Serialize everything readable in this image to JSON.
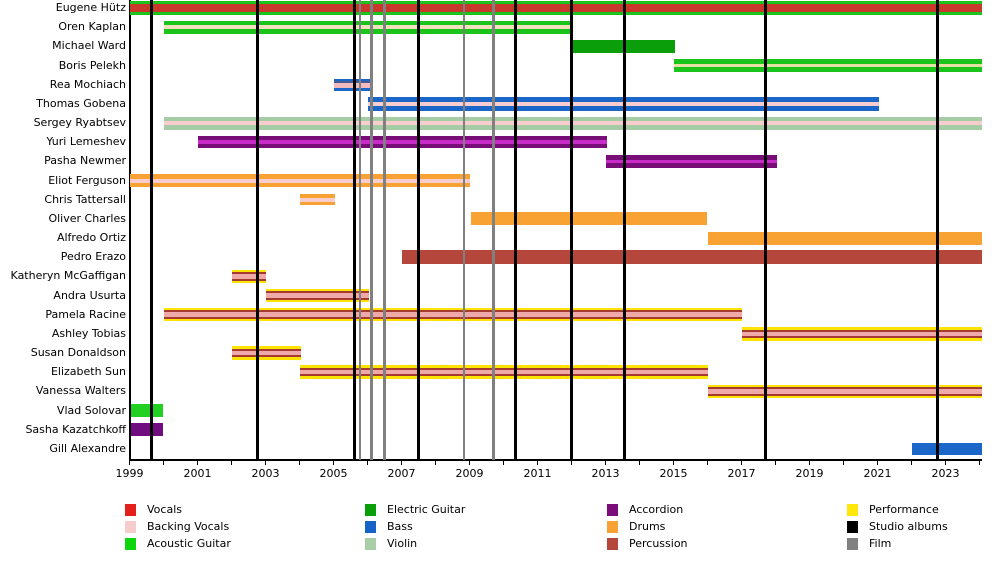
{
  "palette": {
    "vocals": "#C9382C",
    "acoustic": "#1BC41B",
    "acousticBright": "#22D022",
    "electric": "#0B9E0B",
    "cream": "#F2DFBE",
    "khaki": "#E6E0A3",
    "bass": "#1A67C9",
    "navy": "#4A5A94",
    "pinkRea": "#F2B9BE",
    "backing": "#F7CDCD",
    "pinkPerf": "#F0A9A9",
    "violin": "#A5CCA5",
    "accordion": "#780D78",
    "magenta": "#C92BC9",
    "sashaPurple": "#6E0C80",
    "drums": "#F7A233",
    "percussion": "#B5463C",
    "percStripe": "#A63A30",
    "performance": "#FFE400",
    "album": "#000000",
    "film": "#808080"
  },
  "chart_data": {
    "type": "bar",
    "subtype": "timeline-gantt-band-members",
    "x_axis": {
      "start_year": 1999,
      "end_year": 2024,
      "tick_labels": [
        1999,
        2001,
        2003,
        2005,
        2007,
        2009,
        2011,
        2013,
        2015,
        2017,
        2019,
        2021,
        2023
      ],
      "minor_tick_every_year": true,
      "grid": false
    },
    "members": [
      {
        "name": "Eugene Hütz",
        "start": 1999.0,
        "end": 2024.07,
        "stripes": [
          [
            "acoustic",
            3
          ],
          [
            "vocals",
            8.5
          ],
          [
            "acoustic",
            3
          ]
        ]
      },
      {
        "name": "Oren Kaplan",
        "start": 2000.0,
        "end": 2012.05,
        "stripes": [
          [
            "acoustic",
            4.5
          ],
          [
            "cream",
            4
          ],
          [
            "acoustic",
            4.5
          ]
        ]
      },
      {
        "name": "Michael Ward",
        "start": 2012.0,
        "end": 2015.05,
        "stripes": [
          [
            "electric",
            13
          ]
        ]
      },
      {
        "name": "Boris Pelekh",
        "start": 2015.0,
        "end": 2024.07,
        "stripes": [
          [
            "acoustic",
            4.5
          ],
          [
            "khaki",
            3.5
          ],
          [
            "acoustic",
            4.5
          ]
        ]
      },
      {
        "name": "Rea Mochiach",
        "start": 2005.0,
        "end": 2006.12,
        "stripes": [
          [
            "bass",
            2.5
          ],
          [
            "navy",
            2
          ],
          [
            "pinkRea",
            4.5
          ],
          [
            "bass",
            3
          ]
        ]
      },
      {
        "name": "Thomas Gobena",
        "start": 2006.0,
        "end": 2021.05,
        "stripes": [
          [
            "bass",
            4.5
          ],
          [
            "backing",
            4.5
          ],
          [
            "bass",
            4.5
          ]
        ]
      },
      {
        "name": "Sergey Ryabtsev",
        "start": 2000.0,
        "end": 2024.07,
        "stripes": [
          [
            "violin",
            4.5
          ],
          [
            "backing",
            4
          ],
          [
            "violin",
            4.5
          ]
        ]
      },
      {
        "name": "Yuri Lemeshev",
        "start": 2001.0,
        "end": 2013.05,
        "stripes": [
          [
            "accordion",
            4.5
          ],
          [
            "magenta",
            3.5
          ],
          [
            "accordion",
            4.5
          ]
        ]
      },
      {
        "name": "Pasha Newmer",
        "start": 2013.0,
        "end": 2018.05,
        "stripes": [
          [
            "accordion",
            4.5
          ],
          [
            "magenta",
            3.5
          ],
          [
            "accordion",
            4.5
          ]
        ]
      },
      {
        "name": "Eliot Ferguson",
        "start": 1999.0,
        "end": 2009.0,
        "stripes": [
          [
            "drums",
            4.5
          ],
          [
            "backing",
            4
          ],
          [
            "drums",
            4.5
          ]
        ]
      },
      {
        "name": "Chris Tattersall",
        "start": 2004.0,
        "end": 2005.05,
        "stripes": [
          [
            "drums",
            3.5
          ],
          [
            "backing",
            4
          ],
          [
            "drums",
            3.5
          ]
        ]
      },
      {
        "name": "Oliver Charles",
        "start": 2009.05,
        "end": 2016.0,
        "stripes": [
          [
            "drums",
            13
          ]
        ]
      },
      {
        "name": "Alfredo Ortiz",
        "start": 2016.0,
        "end": 2024.07,
        "stripes": [
          [
            "drums",
            13
          ]
        ]
      },
      {
        "name": "Pedro Erazo",
        "start": 2007.0,
        "end": 2024.07,
        "stripes": [
          [
            "percussion",
            13.5
          ]
        ]
      },
      {
        "name": "Katheryn McGaffigan",
        "start": 2002.0,
        "end": 2003.0,
        "stripes": [
          [
            "performance",
            2.5
          ],
          [
            "percStripe",
            2
          ],
          [
            "pinkPerf",
            4.5
          ],
          [
            "percStripe",
            2
          ],
          [
            "performance",
            2.5
          ]
        ]
      },
      {
        "name": "Andra Usurta",
        "start": 2003.0,
        "end": 2006.05,
        "stripes": [
          [
            "performance",
            2.5
          ],
          [
            "percStripe",
            2
          ],
          [
            "pinkPerf",
            4.5
          ],
          [
            "percStripe",
            2
          ],
          [
            "performance",
            2.5
          ]
        ]
      },
      {
        "name": "Pamela Racine",
        "start": 2000.0,
        "end": 2017.0,
        "stripes": [
          [
            "performance",
            2.5
          ],
          [
            "percStripe",
            2
          ],
          [
            "pinkPerf",
            4.5
          ],
          [
            "percStripe",
            2
          ],
          [
            "performance",
            2.5
          ]
        ]
      },
      {
        "name": "Ashley Tobias",
        "start": 2017.0,
        "end": 2024.07,
        "stripes": [
          [
            "performance",
            2.5
          ],
          [
            "percStripe",
            2
          ],
          [
            "pinkPerf",
            4.5
          ],
          [
            "percStripe",
            2
          ],
          [
            "performance",
            2.5
          ]
        ]
      },
      {
        "name": "Susan Donaldson",
        "start": 2002.0,
        "end": 2004.05,
        "stripes": [
          [
            "performance",
            2.5
          ],
          [
            "percStripe",
            2
          ],
          [
            "pinkPerf",
            4.5
          ],
          [
            "percStripe",
            2
          ],
          [
            "performance",
            2.5
          ]
        ]
      },
      {
        "name": "Elizabeth Sun",
        "start": 2004.0,
        "end": 2016.0,
        "stripes": [
          [
            "performance",
            2.5
          ],
          [
            "percStripe",
            2
          ],
          [
            "pinkPerf",
            4.5
          ],
          [
            "percStripe",
            2
          ],
          [
            "performance",
            2.5
          ]
        ]
      },
      {
        "name": "Vanessa Walters",
        "start": 2016.0,
        "end": 2024.07,
        "stripes": [
          [
            "performance",
            2.5
          ],
          [
            "percStripe",
            2
          ],
          [
            "pinkPerf",
            4.5
          ],
          [
            "percStripe",
            2
          ],
          [
            "performance",
            2.5
          ]
        ]
      },
      {
        "name": "Vlad Solovar",
        "start": 1999.05,
        "end": 2000.0,
        "stripes": [
          [
            "acousticBright",
            12.5
          ]
        ]
      },
      {
        "name": "Sasha Kazatchkoff",
        "start": 1999.05,
        "end": 2000.0,
        "stripes": [
          [
            "sashaPurple",
            12.5
          ]
        ]
      },
      {
        "name": "Gill Alexandre",
        "start": 2022.0,
        "end": 2024.07,
        "stripes": [
          [
            "bass",
            12
          ]
        ]
      }
    ],
    "album_lines_years": [
      1999.65,
      2002.75,
      2005.62,
      2007.5,
      2010.35,
      2012.0,
      2013.57,
      2017.7,
      2022.75
    ],
    "film_lines_years": [
      2005.78,
      2006.12,
      2006.5,
      2008.84,
      2009.7
    ],
    "legend": {
      "columns": [
        [
          {
            "label": "Vocals",
            "color": "#E3201B"
          },
          {
            "label": "Backing Vocals",
            "color": "#F7CCCC"
          },
          {
            "label": "Acoustic Guitar",
            "color": "#0ED40E"
          }
        ],
        [
          {
            "label": "Electric Guitar",
            "color": "#0B9E0B"
          },
          {
            "label": "Bass",
            "color": "#1663C8"
          },
          {
            "label": "Violin",
            "color": "#A8CEA8"
          }
        ],
        [
          {
            "label": "Accordion",
            "color": "#7A0D7A"
          },
          {
            "label": "Drums",
            "color": "#F7A233"
          },
          {
            "label": "Percussion",
            "color": "#B5463C"
          }
        ],
        [
          {
            "label": "Performance",
            "color": "#FFE70A"
          },
          {
            "label": "Studio albums",
            "color": "#000000"
          },
          {
            "label": "Film",
            "color": "#808080"
          }
        ]
      ]
    }
  }
}
